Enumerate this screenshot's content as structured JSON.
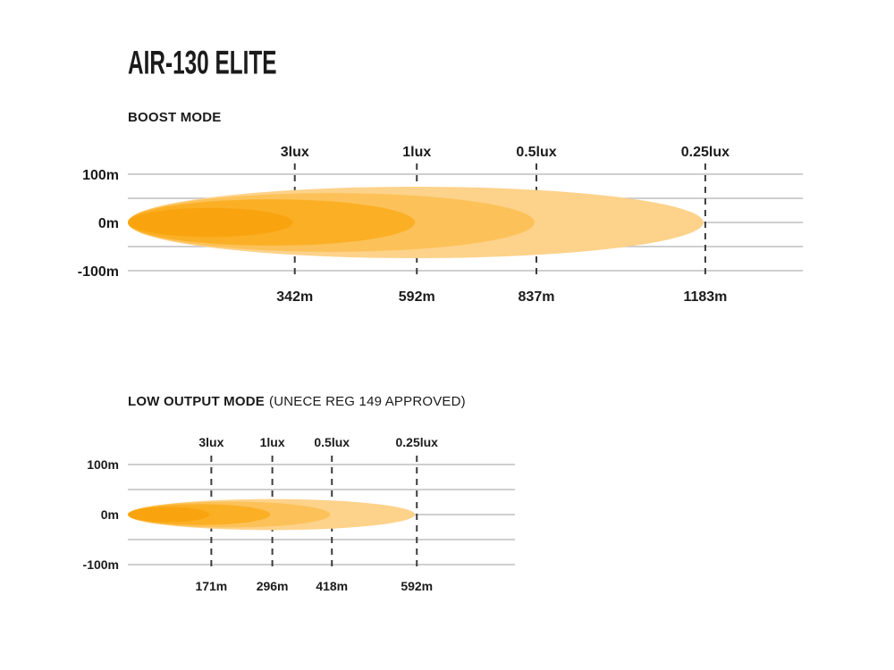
{
  "title": "AIR-130 ELITE",
  "colors": {
    "beam_layers_inner_to_outer": [
      "#F9A40E",
      "#FBAF25",
      "#FCC259",
      "#FDD28A"
    ],
    "gridline": "#bfbfbf",
    "tick_dash": "#3d3d3d",
    "text": "#1b1b1b",
    "background": "#ffffff"
  },
  "chart_data": [
    {
      "type": "area",
      "title": "BOOST MODE",
      "subtitle": "",
      "lux_distance_layers": [
        {
          "lux_label": "3lux",
          "distance_label": "342m",
          "distance_m": 342,
          "beam_spread_m": 30
        },
        {
          "lux_label": "1lux",
          "distance_label": "592m",
          "distance_m": 592,
          "beam_spread_m": 48
        },
        {
          "lux_label": "0.5lux",
          "distance_label": "837m",
          "distance_m": 837,
          "beam_spread_m": 61
        },
        {
          "lux_label": "0.25lux",
          "distance_label": "1183m",
          "distance_m": 1183,
          "beam_spread_m": 74
        }
      ],
      "y_ticks": [
        {
          "label": "100m",
          "value_m": 100
        },
        {
          "label": "0m",
          "value_m": 0
        },
        {
          "label": "-100m",
          "value_m": -100
        }
      ],
      "grid_values_m": [
        100,
        50,
        0,
        -50,
        -100
      ],
      "ylim_m": [
        -100,
        100
      ],
      "grid_extent_m": 1383,
      "grid": true
    },
    {
      "type": "area",
      "title": "LOW OUTPUT MODE",
      "subtitle": "(UNECE REG 149 APPROVED)",
      "lux_distance_layers": [
        {
          "lux_label": "3lux",
          "distance_label": "171m",
          "distance_m": 171,
          "beam_spread_m": 15
        },
        {
          "lux_label": "1lux",
          "distance_label": "296m",
          "distance_m": 296,
          "beam_spread_m": 21
        },
        {
          "lux_label": "0.5lux",
          "distance_label": "418m",
          "distance_m": 418,
          "beam_spread_m": 26
        },
        {
          "lux_label": "0.25lux",
          "distance_label": "592m",
          "distance_m": 592,
          "beam_spread_m": 31
        }
      ],
      "y_ticks": [
        {
          "label": "100m",
          "value_m": 100
        },
        {
          "label": "0m",
          "value_m": 0
        },
        {
          "label": "-100m",
          "value_m": -100
        }
      ],
      "grid_values_m": [
        100,
        50,
        0,
        -50,
        -100
      ],
      "ylim_m": [
        -100,
        100
      ],
      "grid_extent_m": 793,
      "grid": true
    }
  ]
}
